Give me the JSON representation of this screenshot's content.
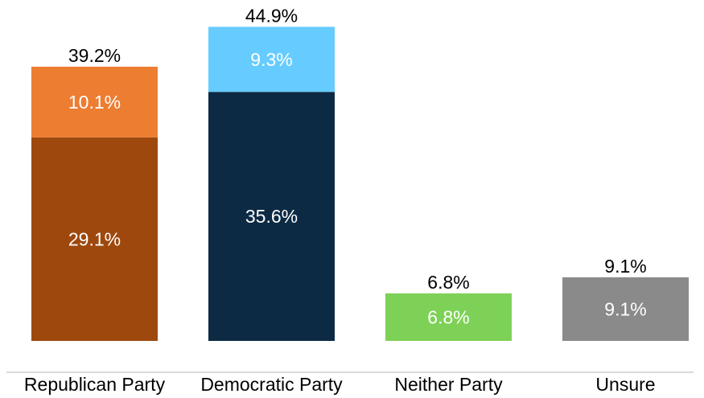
{
  "chart_data": {
    "type": "bar",
    "stacked": true,
    "categories": [
      "Republican Party",
      "Democratic Party",
      "Neither Party",
      "Unsure"
    ],
    "totals": [
      {
        "value": 39.2,
        "label": "39.2%"
      },
      {
        "value": 44.9,
        "label": "44.9%"
      },
      {
        "value": 6.8,
        "label": "6.8%"
      },
      {
        "value": 9.1,
        "label": "9.1%"
      }
    ],
    "bars": [
      {
        "segments": [
          {
            "value": 29.1,
            "label": "29.1%",
            "color": "#9E480E"
          },
          {
            "value": 10.1,
            "label": "10.1%",
            "color": "#ED7D31"
          }
        ]
      },
      {
        "segments": [
          {
            "value": 35.6,
            "label": "35.6%",
            "color": "#0C2A44"
          },
          {
            "value": 9.3,
            "label": "9.3%",
            "color": "#66CCFF"
          }
        ]
      },
      {
        "segments": [
          {
            "value": 6.8,
            "label": "6.8%",
            "color": "#7ED157"
          }
        ]
      },
      {
        "segments": [
          {
            "value": 9.1,
            "label": "9.1%",
            "color": "#8A8A8A"
          }
        ]
      }
    ],
    "axis_color": "#D9D9D9",
    "title": "",
    "xlabel": "",
    "ylabel": "",
    "ylim": [
      0,
      50
    ],
    "grid": false,
    "legend": "none"
  }
}
